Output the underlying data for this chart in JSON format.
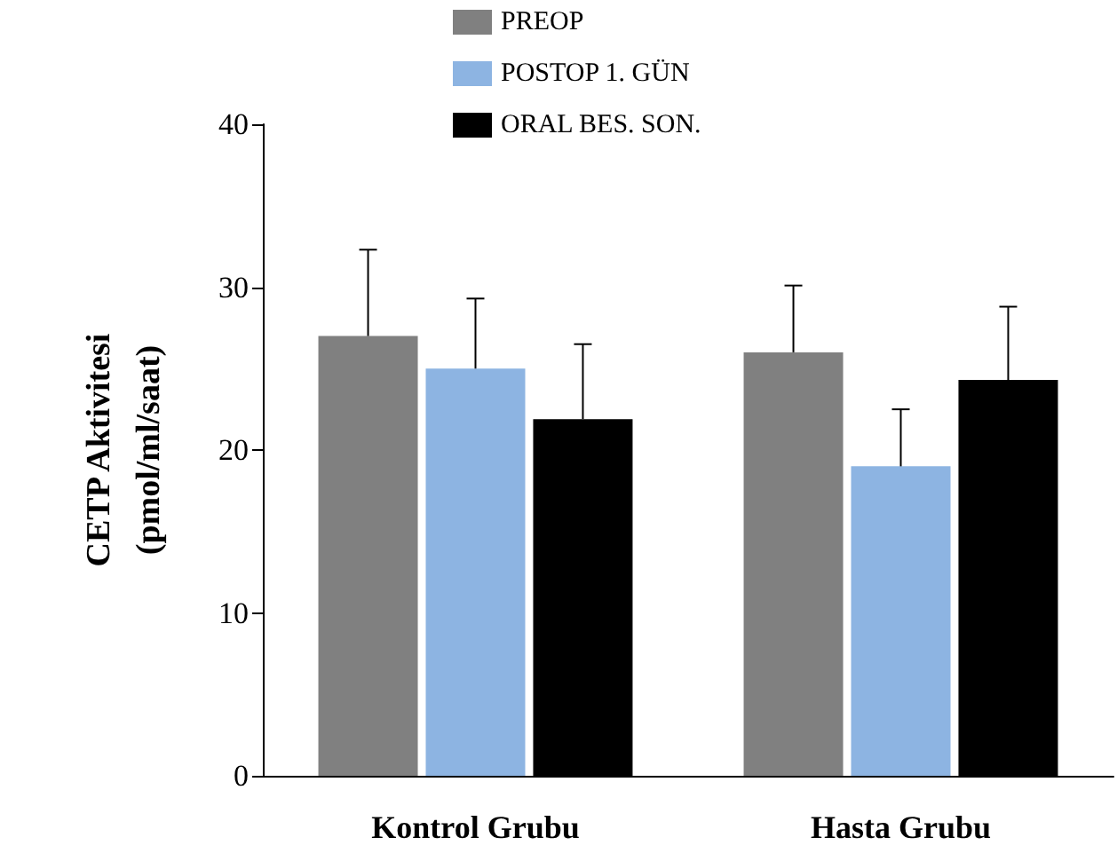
{
  "chart_data": {
    "type": "bar",
    "ylabel": "CETP Aktivitesi\n(pmol/ml/saat)",
    "categories": [
      "Kontrol Grubu",
      "Hasta Grubu"
    ],
    "series": [
      {
        "name": "PREOP",
        "color": "#808080",
        "values": [
          27.0,
          26.0
        ],
        "errors": [
          [
            27.0,
            32.3
          ],
          [
            26.0,
            30.1
          ]
        ]
      },
      {
        "name": "POSTOP 1. GÜN",
        "color": "#8db4e2",
        "values": [
          25.0,
          19.0
        ],
        "errors": [
          [
            25.0,
            29.3
          ],
          [
            19.0,
            22.5
          ]
        ]
      },
      {
        "name": "ORAL BES. SON.",
        "color": "#000000",
        "values": [
          21.9,
          24.3
        ],
        "errors": [
          [
            21.9,
            26.5
          ],
          [
            24.3,
            28.8
          ]
        ]
      }
    ],
    "ylim": [
      0,
      40
    ],
    "yticks": [
      0,
      10,
      20,
      30,
      40
    ],
    "grid": false,
    "legend": "top"
  }
}
